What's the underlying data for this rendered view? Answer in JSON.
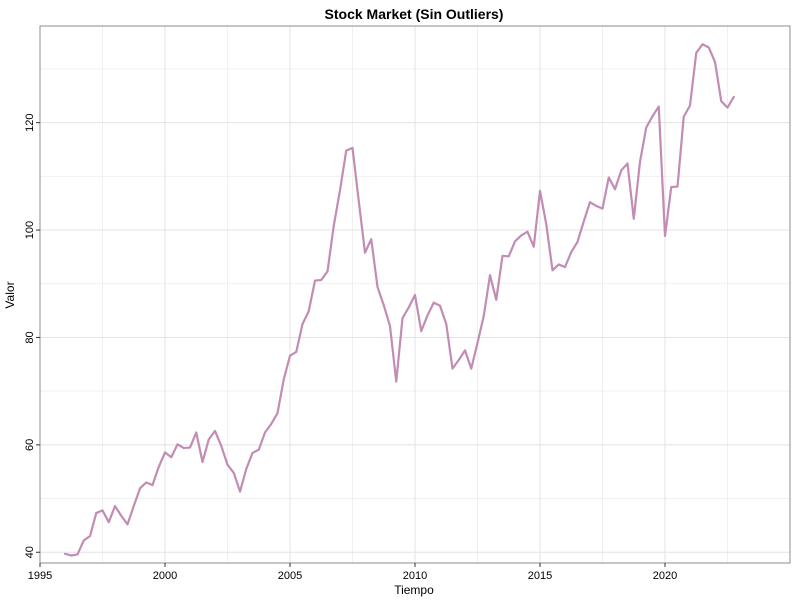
{
  "chart_data": {
    "type": "line",
    "title": "Stock Market (Sin Outliers)",
    "xlabel": "Tiempo",
    "ylabel": "Valor",
    "xlim": [
      1995,
      2025
    ],
    "ylim": [
      38,
      138
    ],
    "x_ticks": [
      "1995",
      "2000",
      "2005",
      "2010",
      "2015",
      "2020"
    ],
    "y_ticks": [
      "40",
      "60",
      "80",
      "100",
      "120"
    ],
    "grid": true,
    "series": [
      {
        "color": "#c28cb4",
        "x": [
          1996.0,
          1996.25,
          1996.5,
          1996.75,
          1997.0,
          1997.25,
          1997.5,
          1997.75,
          1998.0,
          1998.25,
          1998.5,
          1998.75,
          1999.0,
          1999.25,
          1999.5,
          1999.75,
          2000.0,
          2000.25,
          2000.5,
          2000.75,
          2001.0,
          2001.25,
          2001.5,
          2001.75,
          2002.0,
          2002.25,
          2002.5,
          2002.75,
          2003.0,
          2003.25,
          2003.5,
          2003.75,
          2004.0,
          2004.25,
          2004.5,
          2004.75,
          2005.0,
          2005.25,
          2005.5,
          2005.75,
          2006.0,
          2006.25,
          2006.5,
          2006.75,
          2007.0,
          2007.25,
          2007.5,
          2007.75,
          2008.0,
          2008.25,
          2008.5,
          2008.75,
          2009.0,
          2009.25,
          2009.5,
          2009.75,
          2010.0,
          2010.25,
          2010.5,
          2010.75,
          2011.0,
          2011.25,
          2011.5,
          2011.75,
          2012.0,
          2012.25,
          2012.5,
          2012.75,
          2013.0,
          2013.25,
          2013.5,
          2013.75,
          2014.0,
          2014.25,
          2014.5,
          2014.75,
          2015.0,
          2015.25,
          2015.5,
          2015.75,
          2016.0,
          2016.25,
          2016.5,
          2016.75,
          2017.0,
          2017.25,
          2017.5,
          2017.75,
          2018.0,
          2018.25,
          2018.5,
          2018.75,
          2019.0,
          2019.25,
          2019.5,
          2019.75,
          2020.0,
          2020.25,
          2020.5,
          2020.75,
          2021.0,
          2021.25,
          2021.5,
          2021.75,
          2022.0,
          2022.25,
          2022.5,
          2022.75
        ],
        "y": [
          39.7,
          39.4,
          39.6,
          42.2,
          43.0,
          47.3,
          47.8,
          45.6,
          48.6,
          46.8,
          45.2,
          48.6,
          51.9,
          53.0,
          52.5,
          55.9,
          58.6,
          57.7,
          60.1,
          59.4,
          59.5,
          62.3,
          56.8,
          61.0,
          62.6,
          59.8,
          56.3,
          54.8,
          51.3,
          55.5,
          58.5,
          59.1,
          62.3,
          63.9,
          65.9,
          72.2,
          76.6,
          77.3,
          82.5,
          84.9,
          90.6,
          90.7,
          92.3,
          100.8,
          107.4,
          114.8,
          115.3,
          105.4,
          95.8,
          98.3,
          89.4,
          86.0,
          82.1,
          71.8,
          83.6,
          85.6,
          87.9,
          81.2,
          84.1,
          86.5,
          85.9,
          82.5,
          74.2,
          75.8,
          77.6,
          74.2,
          79.0,
          84.0,
          91.6,
          87.0,
          95.2,
          95.1,
          97.9,
          99.0,
          99.7,
          96.9,
          107.3,
          101.1,
          92.5,
          93.6,
          93.1,
          95.9,
          97.8,
          101.6,
          105.2,
          104.5,
          104.0,
          109.8,
          107.6,
          111.1,
          112.4,
          102.1,
          112.7,
          119.1,
          121.2,
          123.0,
          98.9,
          108.0,
          108.1,
          121.1,
          123.2,
          133.0,
          134.6,
          134.0,
          131.3,
          124.0,
          122.8,
          124.8
        ]
      }
    ]
  }
}
